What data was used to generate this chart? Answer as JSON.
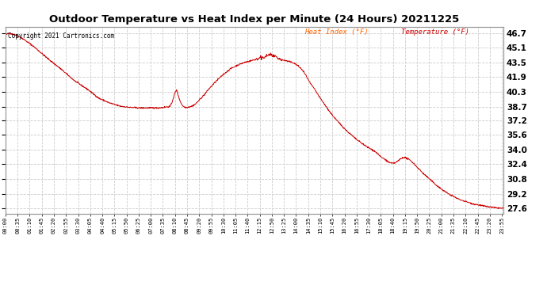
{
  "title": "Outdoor Temperature vs Heat Index per Minute (24 Hours) 20211225",
  "copyright": "Copyright 2021 Cartronics.com",
  "legend_heat": "Heat Index (°F)",
  "legend_temp": "Temperature (°F)",
  "ylabel_right_ticks": [
    27.6,
    29.2,
    30.8,
    32.4,
    34.0,
    35.6,
    37.2,
    38.7,
    40.3,
    41.9,
    43.5,
    45.1,
    46.7
  ],
  "ylim": [
    27.0,
    47.4
  ],
  "line_color": "#cc0000",
  "bg_color": "#ffffff",
  "grid_color": "#cccccc",
  "title_color": "#000000",
  "copyright_color": "#000000",
  "legend_heat_color": "#ff6600",
  "legend_temp_color": "#cc0000",
  "x_tick_interval_minutes": 35,
  "total_minutes": 1440,
  "figsize": [
    6.9,
    3.75
  ],
  "dpi": 100,
  "waypoints": [
    [
      0,
      46.5
    ],
    [
      10,
      46.7
    ],
    [
      30,
      46.5
    ],
    [
      50,
      46.1
    ],
    [
      80,
      45.3
    ],
    [
      120,
      44.0
    ],
    [
      160,
      42.8
    ],
    [
      200,
      41.5
    ],
    [
      240,
      40.5
    ],
    [
      270,
      39.6
    ],
    [
      300,
      39.1
    ],
    [
      330,
      38.75
    ],
    [
      360,
      38.6
    ],
    [
      390,
      38.55
    ],
    [
      420,
      38.55
    ],
    [
      440,
      38.55
    ],
    [
      455,
      38.6
    ],
    [
      465,
      38.65
    ],
    [
      475,
      38.7
    ],
    [
      480,
      39.0
    ],
    [
      485,
      39.6
    ],
    [
      490,
      40.2
    ],
    [
      495,
      40.5
    ],
    [
      497,
      40.3
    ],
    [
      500,
      39.8
    ],
    [
      505,
      39.3
    ],
    [
      510,
      38.9
    ],
    [
      515,
      38.7
    ],
    [
      520,
      38.6
    ],
    [
      530,
      38.65
    ],
    [
      540,
      38.75
    ],
    [
      550,
      39.0
    ],
    [
      560,
      39.4
    ],
    [
      575,
      40.0
    ],
    [
      590,
      40.7
    ],
    [
      610,
      41.5
    ],
    [
      630,
      42.2
    ],
    [
      650,
      42.8
    ],
    [
      670,
      43.2
    ],
    [
      690,
      43.5
    ],
    [
      710,
      43.7
    ],
    [
      720,
      43.8
    ],
    [
      730,
      43.9
    ],
    [
      740,
      44.0
    ],
    [
      750,
      44.1
    ],
    [
      755,
      44.2
    ],
    [
      760,
      44.3
    ],
    [
      765,
      44.35
    ],
    [
      770,
      44.3
    ],
    [
      775,
      44.2
    ],
    [
      780,
      44.1
    ],
    [
      790,
      43.9
    ],
    [
      800,
      43.8
    ],
    [
      810,
      43.7
    ],
    [
      820,
      43.6
    ],
    [
      830,
      43.5
    ],
    [
      840,
      43.3
    ],
    [
      850,
      43.0
    ],
    [
      860,
      42.6
    ],
    [
      870,
      42.0
    ],
    [
      880,
      41.3
    ],
    [
      895,
      40.5
    ],
    [
      910,
      39.6
    ],
    [
      925,
      38.8
    ],
    [
      940,
      38.0
    ],
    [
      955,
      37.3
    ],
    [
      970,
      36.7
    ],
    [
      985,
      36.1
    ],
    [
      1000,
      35.6
    ],
    [
      1015,
      35.1
    ],
    [
      1030,
      34.7
    ],
    [
      1045,
      34.3
    ],
    [
      1060,
      34.0
    ],
    [
      1075,
      33.6
    ],
    [
      1085,
      33.2
    ],
    [
      1095,
      33.0
    ],
    [
      1105,
      32.7
    ],
    [
      1112,
      32.55
    ],
    [
      1118,
      32.5
    ],
    [
      1125,
      32.55
    ],
    [
      1133,
      32.7
    ],
    [
      1142,
      33.0
    ],
    [
      1150,
      33.15
    ],
    [
      1158,
      33.1
    ],
    [
      1165,
      32.95
    ],
    [
      1173,
      32.75
    ],
    [
      1180,
      32.5
    ],
    [
      1190,
      32.1
    ],
    [
      1205,
      31.5
    ],
    [
      1220,
      31.0
    ],
    [
      1240,
      30.3
    ],
    [
      1260,
      29.7
    ],
    [
      1280,
      29.2
    ],
    [
      1310,
      28.6
    ],
    [
      1350,
      28.1
    ],
    [
      1390,
      27.8
    ],
    [
      1420,
      27.65
    ],
    [
      1439,
      27.6
    ]
  ]
}
